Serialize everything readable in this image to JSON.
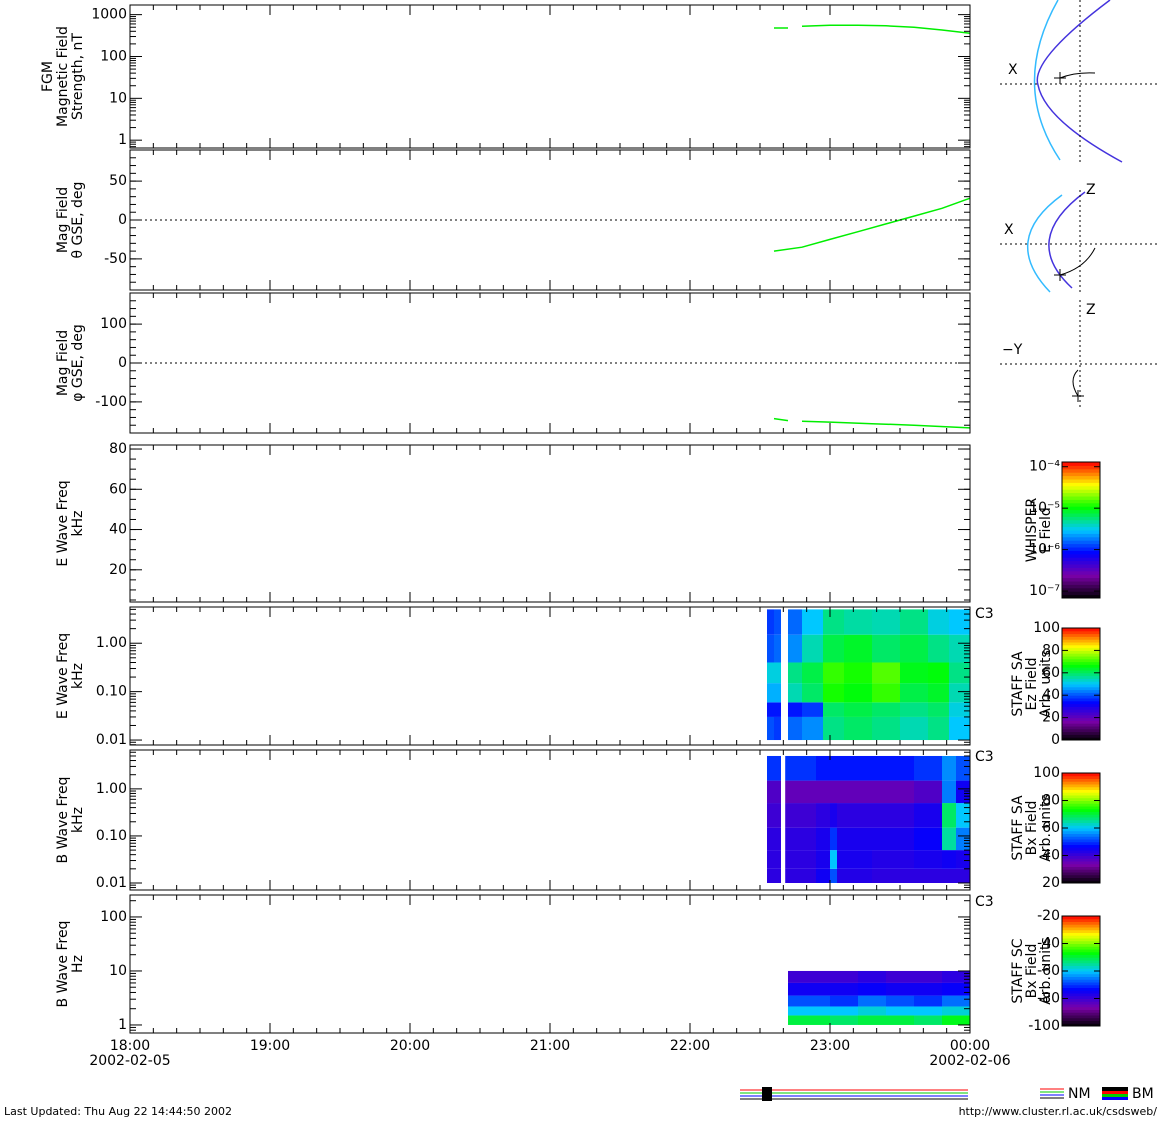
{
  "chart_data": {
    "type": "multi-panel",
    "xlim": [
      18,
      24
    ],
    "xticks": [
      {
        "value": 18,
        "label": "18:00"
      },
      {
        "value": 19,
        "label": "19:00"
      },
      {
        "value": 20,
        "label": "20:00"
      },
      {
        "value": 21,
        "label": "21:00"
      },
      {
        "value": 22,
        "label": "22:00"
      },
      {
        "value": 23,
        "label": "23:00"
      },
      {
        "value": 24,
        "label": "00:00"
      }
    ],
    "x_minor_per_major": 6,
    "dates": [
      "2002-02-05",
      "2002-02-06"
    ],
    "colormap": [
      "#000000",
      "#7a00a8",
      "#0000ff",
      "#00c8ff",
      "#00ff00",
      "#ffff00",
      "#ff0000"
    ],
    "panels": [
      {
        "type": "line",
        "ylabel": [
          "FGM",
          "Magnetic Field",
          "Strength, nT"
        ],
        "log": true,
        "ylim": [
          0.65,
          1700
        ],
        "yticks": [
          1,
          10,
          100,
          1000
        ],
        "series": [
          {
            "color": "#00ee00",
            "x": [
              22.6,
              22.7,
              22.75,
              22.8,
              23.0,
              23.2,
              23.4,
              23.6,
              23.8,
              24.0
            ],
            "values": [
              480,
              480,
              null,
              530,
              560,
              560,
              540,
              500,
              430,
              360
            ]
          }
        ]
      },
      {
        "type": "line",
        "ylabel": [
          "Mag  Field",
          "θ GSE, deg"
        ],
        "log": false,
        "y_minor_per_major": 5,
        "ylim": [
          -90,
          90
        ],
        "yticks": [
          -50,
          0,
          50
        ],
        "zero_line": 0,
        "series": [
          {
            "color": "#00ee00",
            "x": [
              22.6,
              22.8,
              23.0,
              23.2,
              23.4,
              23.6,
              23.8,
              24.0
            ],
            "values": [
              -40,
              -35,
              -25,
              -15,
              -5,
              5,
              15,
              28
            ]
          }
        ]
      },
      {
        "type": "line",
        "ylabel": [
          "Mag Field",
          "φ GSE, deg"
        ],
        "log": false,
        "y_minor_per_major": 5,
        "ylim": [
          -180,
          180
        ],
        "yticks": [
          -100,
          0,
          100
        ],
        "zero_line": 0,
        "series": [
          {
            "color": "#00ee00",
            "x": [
              22.6,
              22.7,
              22.75,
              22.8,
              23.0,
              23.3,
              23.6,
              24.0
            ],
            "values": [
              -143,
              -148,
              null,
              -150,
              -152,
              -156,
              -160,
              -167
            ]
          }
        ]
      },
      {
        "type": "heatmap",
        "ylabel": [
          "E Wave Freq",
          "kHz"
        ],
        "log": false,
        "y_minor_per_major": 4,
        "ylim": [
          4,
          82
        ],
        "yticks": [
          20,
          40,
          60,
          80
        ],
        "colorbar": {
          "label": [
            "WHISPER",
            "E Field"
          ],
          "log": true,
          "lim": [
            6.8e-08,
            0.00013
          ],
          "ticks": [
            {
              "value": 1e-07,
              "label": "10⁻⁷"
            },
            {
              "value": 1e-06,
              "label": "10⁻⁶"
            },
            {
              "value": 1e-05,
              "label": "10⁻⁵"
            },
            {
              "value": 0.0001,
              "label": "10⁻⁴"
            }
          ]
        }
      },
      {
        "type": "heatmap",
        "ylabel": [
          "E Wave Freq",
          "kHz"
        ],
        "log": true,
        "spacecraft": "C3",
        "ylim": [
          0.0079,
          5.6
        ],
        "yticks": [
          0.01,
          {
            "value": 0.1,
            "label": "0.10"
          },
          {
            "value": 1,
            "label": "1.00"
          }
        ],
        "x_edges": [
          22.55,
          22.6,
          22.65,
          22.7,
          22.8,
          22.95,
          23.1,
          23.3,
          23.5,
          23.7,
          23.85,
          24.0
        ],
        "y_edges": [
          0.01,
          0.03,
          0.06,
          0.15,
          0.4,
          1.5,
          5
        ],
        "z": [
          [
            40,
            38,
            null,
            42,
            45,
            58,
            60,
            58,
            55,
            58,
            50
          ],
          [
            35,
            35,
            null,
            35,
            38,
            60,
            62,
            60,
            58,
            60,
            52
          ],
          [
            48,
            48,
            null,
            55,
            60,
            68,
            66,
            70,
            62,
            64,
            55
          ],
          [
            52,
            52,
            null,
            58,
            62,
            70,
            68,
            72,
            65,
            66,
            58
          ],
          [
            40,
            42,
            null,
            45,
            55,
            62,
            64,
            60,
            62,
            58,
            55
          ],
          [
            38,
            40,
            null,
            42,
            50,
            58,
            56,
            55,
            58,
            52,
            50
          ]
        ],
        "colorbar": {
          "label": [
            "STAFF SA",
            "Ez Field",
            "Arb. units"
          ],
          "log": false,
          "lim": [
            0,
            100
          ],
          "ticks": [
            0,
            20,
            40,
            60,
            80,
            100
          ]
        }
      },
      {
        "type": "heatmap",
        "ylabel": [
          "B Wave Freq",
          "kHz"
        ],
        "log": true,
        "spacecraft": "C3",
        "ylim": [
          0.0071,
          6.7
        ],
        "yticks": [
          0.01,
          {
            "value": 0.1,
            "label": "0.10"
          },
          {
            "value": 1,
            "label": "1.00"
          }
        ],
        "x_edges": [
          22.55,
          22.65,
          22.68,
          22.75,
          22.9,
          23.0,
          23.05,
          23.3,
          23.6,
          23.8,
          23.9,
          24.0
        ],
        "y_edges": [
          0.01,
          0.02,
          0.05,
          0.15,
          0.5,
          1.5,
          5
        ],
        "z": [
          [
            42,
            null,
            42,
            42,
            45,
            52,
            43,
            42,
            42,
            42,
            42
          ],
          [
            42,
            null,
            42,
            42,
            44,
            60,
            44,
            43,
            44,
            45,
            44
          ],
          [
            42,
            null,
            42,
            42,
            44,
            50,
            44,
            44,
            46,
            65,
            55
          ],
          [
            40,
            null,
            40,
            40,
            42,
            44,
            42,
            42,
            44,
            68,
            60
          ],
          [
            38,
            null,
            36,
            36,
            36,
            36,
            36,
            36,
            38,
            55,
            45
          ],
          [
            50,
            null,
            50,
            50,
            48,
            48,
            48,
            48,
            50,
            56,
            52
          ]
        ],
        "colorbar": {
          "label": [
            "STAFF SA",
            "Bx Field",
            "Arb. units"
          ],
          "log": false,
          "lim": [
            20,
            100
          ],
          "ticks": [
            20,
            40,
            60,
            80,
            100
          ]
        }
      },
      {
        "type": "heatmap",
        "ylabel": [
          "B Wave Freq",
          "Hz"
        ],
        "log": true,
        "spacecraft": "C3",
        "ylim": [
          0.71,
          255
        ],
        "yticks": [
          1,
          10,
          100
        ],
        "x_edges": [
          22.7,
          23.0,
          23.2,
          23.4,
          23.6,
          23.8,
          24.0
        ],
        "y_edges": [
          1,
          1.5,
          2.2,
          3.5,
          6,
          10
        ],
        "z": [
          [
            -50,
            -52,
            -50,
            -50,
            -52,
            -48
          ],
          [
            -60,
            -60,
            -58,
            -60,
            -60,
            -58
          ],
          [
            -68,
            -70,
            -66,
            -68,
            -70,
            -66
          ],
          [
            -75,
            -75,
            -74,
            -75,
            -75,
            -74
          ],
          [
            -80,
            -80,
            -78,
            -80,
            -80,
            -78
          ]
        ],
        "colorbar": {
          "label": [
            "STAFF SC",
            "Bx Field",
            "Arb. units"
          ],
          "log": false,
          "lim": [
            -100,
            -20
          ],
          "ticks": [
            -100,
            -80,
            -60,
            -40,
            -20
          ]
        }
      }
    ]
  },
  "orbit_plots": [
    {
      "labels": [
        "X"
      ]
    },
    {
      "labels": [
        "Z",
        "X"
      ]
    },
    {
      "labels": [
        "Z",
        "−Y"
      ]
    }
  ],
  "footer": {
    "updated": "Last Updated:  Thu Aug 22 14:44:50 2002",
    "url": "http://www.cluster.rl.ac.uk/csdsweb/",
    "modes": [
      "NM",
      "BM"
    ]
  }
}
